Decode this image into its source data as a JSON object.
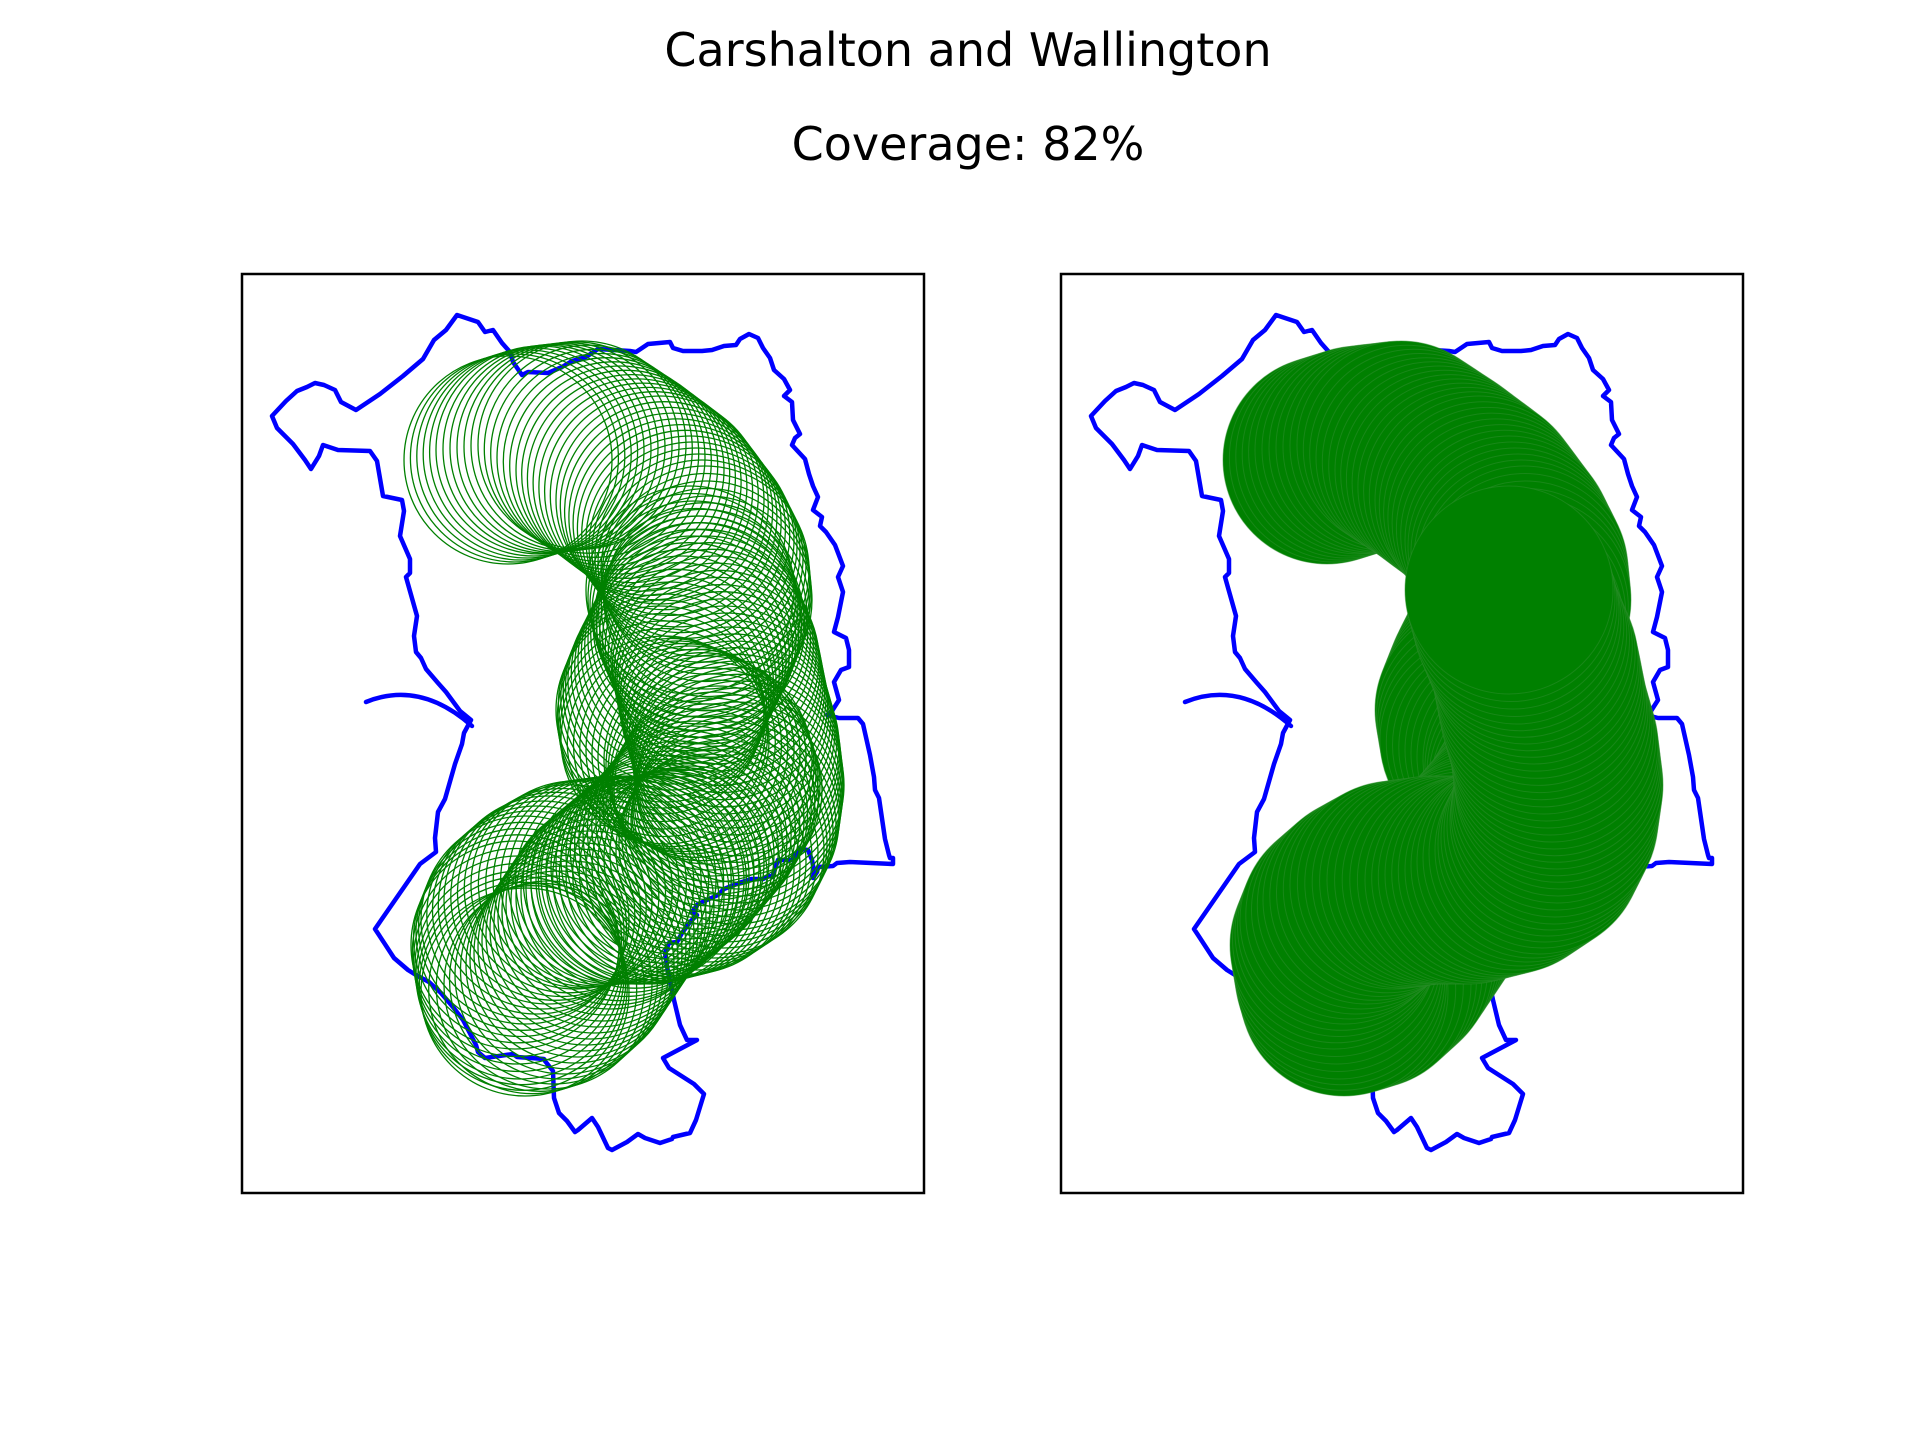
{
  "figure": {
    "title": "Carshalton and Wallington",
    "subtitle": "Coverage: 82%"
  },
  "map": {
    "coverage_percent": 82,
    "boundary_color": "#0000ff",
    "coverage_color": "#008000",
    "panels": [
      {
        "style": "outline-circles"
      },
      {
        "style": "filled"
      }
    ]
  }
}
